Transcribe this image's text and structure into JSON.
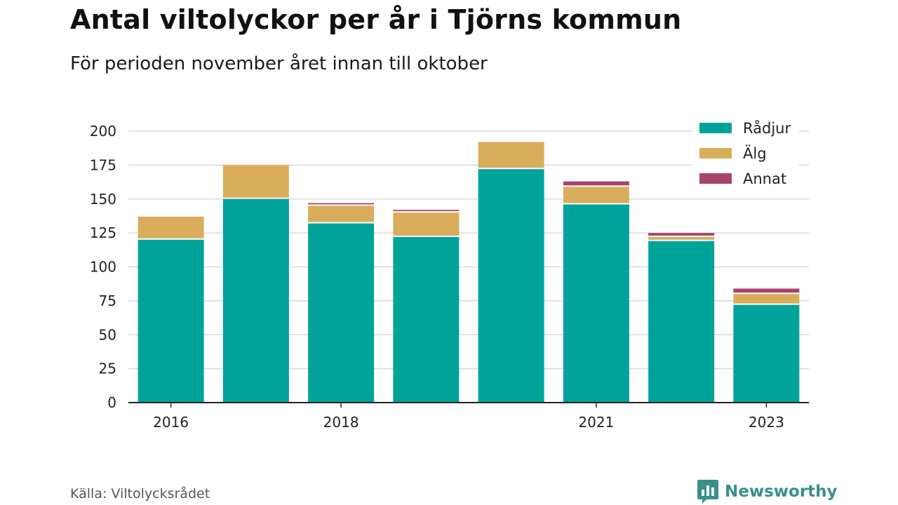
{
  "title": "Antal viltolyckor per år i Tjörns kommun",
  "subtitle": "För perioden november året innan till oktober",
  "source": "Källa: Viltolycksrådet",
  "brand": "Newsworthy",
  "colors": {
    "Rådjur": "#00a39a",
    "Älg": "#d9ad5b",
    "Annat": "#a8436b",
    "brand": "#3a8f8b",
    "grid": "#d9d9d9"
  },
  "chart_data": {
    "type": "bar",
    "stacked": true,
    "categories": [
      "2016",
      "2017",
      "2018",
      "2019",
      "2020",
      "2021",
      "2022",
      "2023"
    ],
    "x_tick_labels": [
      "2016",
      "",
      "2018",
      "",
      "",
      "2021",
      "",
      "2023"
    ],
    "series": [
      {
        "name": "Rådjur",
        "values": [
          120,
          150,
          132,
          122,
          172,
          146,
          119,
          72
        ]
      },
      {
        "name": "Älg",
        "values": [
          17,
          25,
          13,
          18,
          20,
          13,
          3,
          8
        ]
      },
      {
        "name": "Annat",
        "values": [
          0,
          0,
          2,
          2,
          0,
          4,
          3,
          4
        ]
      }
    ],
    "ylim": [
      0,
      200
    ],
    "yticks": [
      0,
      25,
      50,
      75,
      100,
      125,
      150,
      175,
      200
    ],
    "grid": true,
    "legend_position": "top-right"
  }
}
